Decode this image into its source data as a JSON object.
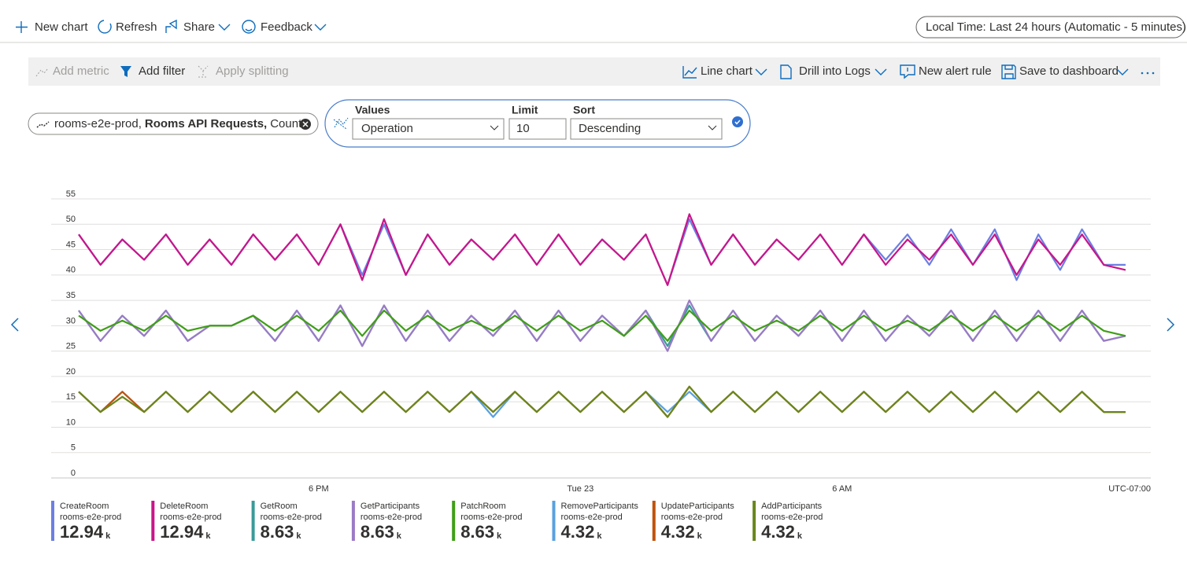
{
  "toolbar": {
    "new_chart": "New chart",
    "refresh": "Refresh",
    "share": "Share",
    "feedback": "Feedback",
    "time_range": "Local Time: Last 24 hours (Automatic - 5 minutes)"
  },
  "command_bar": {
    "add_metric": "Add metric",
    "add_filter": "Add filter",
    "apply_splitting": "Apply splitting",
    "line_chart": "Line chart",
    "drill_into_logs": "Drill into Logs",
    "new_alert_rule": "New alert rule",
    "save_to_dashboard": "Save to dashboard"
  },
  "metric_pill": {
    "resource": "rooms-e2e-prod,",
    "metric": "Rooms API Requests,",
    "aggregation": "Count"
  },
  "splitting": {
    "values_label": "Values",
    "values": "Operation",
    "limit_label": "Limit",
    "limit": 10,
    "sort_label": "Sort",
    "sort": "Descending"
  },
  "chart_data": {
    "type": "line",
    "categories": [
      null,
      null,
      null,
      null,
      null,
      null,
      null,
      null,
      null,
      null,
      null,
      "6 PM",
      null,
      null,
      null,
      null,
      null,
      null,
      null,
      null,
      null,
      null,
      null,
      "Tue 23",
      null,
      null,
      null,
      null,
      null,
      null,
      null,
      null,
      null,
      null,
      null,
      "6 AM",
      null,
      null,
      null,
      null,
      null,
      null,
      null,
      null,
      null,
      null,
      null,
      null,
      null
    ],
    "x_note": "UTC-07:00",
    "ylim": [
      0,
      55
    ],
    "yticks": [
      0,
      5,
      10,
      15,
      20,
      25,
      30,
      35,
      40,
      45,
      50,
      55
    ],
    "grid": true,
    "series": [
      {
        "name": "CreateRoom",
        "resource": "rooms-e2e-prod",
        "total": "12.94",
        "total_unit": "k",
        "color": "#6b7fe3",
        "values": [
          48,
          42,
          47,
          43,
          48,
          42,
          47,
          42,
          48,
          43,
          48,
          42,
          50,
          40,
          50,
          40,
          48,
          42,
          47,
          43,
          48,
          42,
          48,
          42,
          47,
          43,
          48,
          38,
          51,
          42,
          48,
          42,
          47,
          43,
          48,
          42,
          48,
          43,
          48,
          42,
          49,
          42,
          49,
          39,
          48,
          41,
          49,
          42,
          42
        ]
      },
      {
        "name": "DeleteRoom",
        "resource": "rooms-e2e-prod",
        "total": "12.94",
        "total_unit": "k",
        "color": "#c8158a",
        "values": [
          48,
          42,
          47,
          43,
          48,
          42,
          47,
          42,
          48,
          43,
          48,
          42,
          50,
          39,
          51,
          40,
          48,
          42,
          47,
          43,
          48,
          42,
          48,
          42,
          47,
          43,
          48,
          38,
          52,
          42,
          48,
          42,
          47,
          43,
          48,
          42,
          48,
          42,
          47,
          43,
          48,
          42,
          48,
          40,
          47,
          42,
          48,
          42,
          41
        ]
      },
      {
        "name": "GetRoom",
        "resource": "rooms-e2e-prod",
        "total": "8.63",
        "total_unit": "k",
        "color": "#3a9a9a",
        "values": [
          33,
          27,
          32,
          28,
          33,
          27,
          30,
          30,
          32,
          27,
          33,
          27,
          34,
          26,
          34,
          27,
          33,
          27,
          32,
          28,
          33,
          27,
          33,
          27,
          32,
          28,
          33,
          26,
          34,
          27,
          33,
          27,
          32,
          28,
          33,
          27,
          33,
          27,
          32,
          28,
          33,
          27,
          33,
          27,
          33,
          27,
          33,
          27,
          28
        ]
      },
      {
        "name": "GetParticipants",
        "resource": "rooms-e2e-prod",
        "total": "8.63",
        "total_unit": "k",
        "color": "#9b7ac6",
        "values": [
          33,
          27,
          32,
          28,
          33,
          27,
          30,
          30,
          32,
          27,
          33,
          27,
          34,
          26,
          34,
          27,
          33,
          27,
          32,
          28,
          33,
          27,
          33,
          27,
          32,
          28,
          33,
          25,
          35,
          27,
          33,
          27,
          32,
          28,
          33,
          27,
          33,
          27,
          32,
          28,
          33,
          27,
          33,
          27,
          33,
          27,
          33,
          27,
          28
        ]
      },
      {
        "name": "PatchRoom",
        "resource": "rooms-e2e-prod",
        "total": "8.63",
        "total_unit": "k",
        "color": "#3f9e17",
        "values": [
          32,
          29,
          31,
          29,
          32,
          29,
          30,
          30,
          32,
          29,
          32,
          29,
          33,
          28,
          33,
          29,
          32,
          29,
          31,
          29,
          32,
          29,
          32,
          29,
          31,
          28,
          32,
          27,
          33,
          29,
          32,
          29,
          31,
          29,
          32,
          29,
          32,
          29,
          31,
          29,
          32,
          29,
          32,
          29,
          32,
          29,
          32,
          29,
          28
        ]
      },
      {
        "name": "RemoveParticipants",
        "resource": "rooms-e2e-prod",
        "total": "4.32",
        "total_unit": "k",
        "color": "#5aa0df",
        "values": [
          17,
          13,
          17,
          13,
          17,
          13,
          17,
          13,
          17,
          13,
          17,
          13,
          17,
          13,
          17,
          13,
          17,
          13,
          17,
          12,
          17,
          13,
          17,
          13,
          17,
          13,
          17,
          13,
          17,
          13,
          17,
          13,
          17,
          13,
          17,
          13,
          17,
          13,
          17,
          13,
          17,
          13,
          17,
          13,
          17,
          13,
          17,
          13,
          13
        ]
      },
      {
        "name": "UpdateParticipants",
        "resource": "rooms-e2e-prod",
        "total": "4.32",
        "total_unit": "k",
        "color": "#c0520b",
        "values": [
          17,
          13,
          17,
          13,
          17,
          13,
          17,
          13,
          17,
          13,
          17,
          13,
          17,
          13,
          17,
          13,
          17,
          13,
          17,
          13,
          17,
          13,
          17,
          13,
          17,
          13,
          17,
          12,
          18,
          13,
          17,
          13,
          17,
          13,
          17,
          13,
          17,
          13,
          17,
          13,
          17,
          13,
          17,
          13,
          17,
          13,
          17,
          13,
          13
        ]
      },
      {
        "name": "AddParticipants",
        "resource": "rooms-e2e-prod",
        "total": "4.32",
        "total_unit": "k",
        "color": "#6a861b",
        "values": [
          17,
          13,
          16,
          13,
          17,
          13,
          17,
          13,
          17,
          13,
          17,
          13,
          17,
          13,
          17,
          13,
          17,
          13,
          17,
          13,
          17,
          13,
          17,
          13,
          17,
          13,
          17,
          12,
          18,
          13,
          17,
          13,
          17,
          13,
          17,
          13,
          17,
          13,
          17,
          13,
          17,
          13,
          17,
          13,
          17,
          13,
          17,
          13,
          13
        ]
      }
    ]
  }
}
